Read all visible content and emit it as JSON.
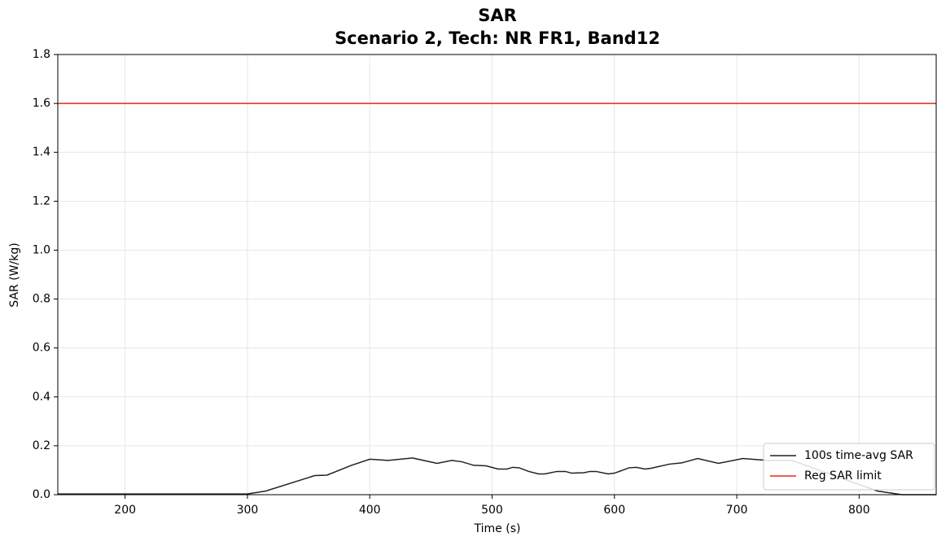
{
  "chart_data": {
    "type": "line",
    "title": "SAR",
    "subtitle": "Scenario 2, Tech: NR FR1, Band12",
    "xlabel": "Time (s)",
    "ylabel": "SAR (W/kg)",
    "xlim": [
      145,
      863
    ],
    "ylim": [
      0,
      1.8
    ],
    "xticks": [
      200,
      300,
      400,
      500,
      600,
      700,
      800
    ],
    "yticks": [
      {
        "value": 0,
        "label": "0.0"
      },
      0.2,
      0.4,
      0.6,
      0.8,
      {
        "value": 1,
        "label": "1.0"
      },
      1.2,
      1.4,
      1.6,
      1.8
    ],
    "grid": true,
    "legend": "lower right",
    "series": [
      {
        "name": "100s time-avg SAR",
        "color": "#222222",
        "x": [
          145,
          300,
          315,
          355,
          365,
          385,
          400,
          415,
          435,
          455,
          467,
          475,
          485,
          495,
          505,
          512,
          517,
          522,
          530,
          538,
          543,
          553,
          560,
          565,
          575,
          580,
          585,
          595,
          600,
          612,
          618,
          625,
          630,
          645,
          655,
          668,
          685,
          705,
          725,
          745,
          815,
          835,
          863
        ],
        "values": [
          0.003,
          0.003,
          0.015,
          0.078,
          0.08,
          0.12,
          0.145,
          0.14,
          0.15,
          0.128,
          0.14,
          0.135,
          0.12,
          0.118,
          0.105,
          0.105,
          0.112,
          0.11,
          0.095,
          0.085,
          0.085,
          0.095,
          0.095,
          0.088,
          0.09,
          0.095,
          0.095,
          0.085,
          0.088,
          0.11,
          0.112,
          0.105,
          0.108,
          0.125,
          0.13,
          0.148,
          0.128,
          0.148,
          0.14,
          0.14,
          0.015,
          0.0,
          0.0
        ]
      },
      {
        "name": "Reg SAR limit",
        "color": "#e8261e",
        "y": 1.6
      }
    ]
  }
}
